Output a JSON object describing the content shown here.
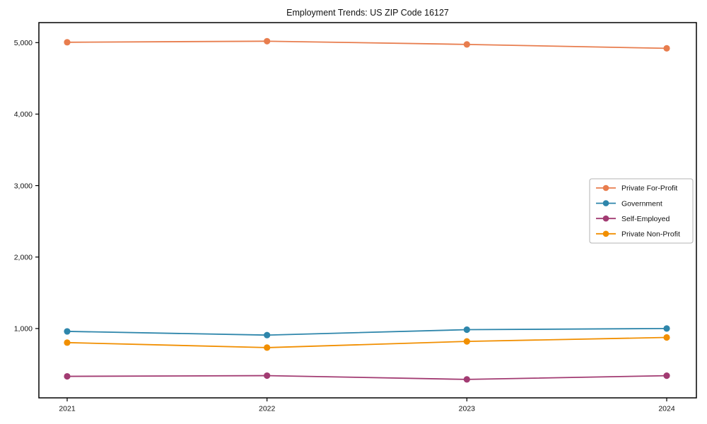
{
  "title": "Employment Trends: US ZIP Code 16127",
  "chart_data": {
    "type": "line",
    "title": "Employment Trends: US ZIP Code 16127",
    "xlabel": "",
    "ylabel": "",
    "categories": [
      "2021",
      "2022",
      "2023",
      "2024"
    ],
    "series": [
      {
        "name": "Private For-Profit",
        "color": "#E87D4E",
        "values": [
          5005,
          5020,
          4975,
          4920
        ]
      },
      {
        "name": "Government",
        "color": "#2E86AB",
        "values": [
          960,
          908,
          984,
          1000
        ]
      },
      {
        "name": "Self-Employed",
        "color": "#A23B72",
        "values": [
          331,
          341,
          288,
          340
        ]
      },
      {
        "name": "Private Non-Profit",
        "color": "#F18F01",
        "values": [
          803,
          733,
          820,
          875
        ]
      }
    ],
    "yticks": [
      1000,
      2000,
      3000,
      4000,
      5000
    ],
    "ylim": [
      30,
      5280
    ],
    "grid": false,
    "legend_position": "right-middle",
    "marker": "circle",
    "axis_color": "#000000",
    "legend_border_color": "#b3b3b3"
  }
}
